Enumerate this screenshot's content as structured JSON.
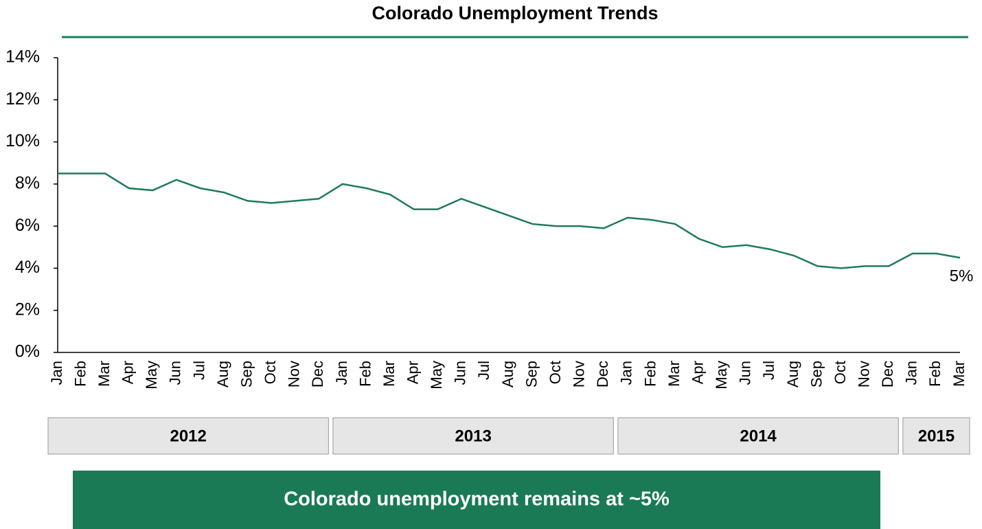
{
  "chart_data": {
    "type": "line",
    "title": "Colorado Unemployment Trends",
    "banner": "Colorado unemployment remains at ~5%",
    "categories": [
      "Jan",
      "Feb",
      "Mar",
      "Apr",
      "May",
      "Jun",
      "Jul",
      "Aug",
      "Sep",
      "Oct",
      "Nov",
      "Dec",
      "Jan",
      "Feb",
      "Mar",
      "Apr",
      "May",
      "Jun",
      "Jul",
      "Aug",
      "Sep",
      "Oct",
      "Nov",
      "Dec",
      "Jan",
      "Feb",
      "Mar",
      "Apr",
      "May",
      "Jun",
      "Jul",
      "Aug",
      "Sep",
      "Oct",
      "Nov",
      "Dec",
      "Jan",
      "Feb",
      "Mar"
    ],
    "year_labels": [
      "2012",
      "2013",
      "2014",
      "2015"
    ],
    "values": [
      8.5,
      8.5,
      8.5,
      7.8,
      7.7,
      8.2,
      7.8,
      7.6,
      7.2,
      7.1,
      7.2,
      7.3,
      8.0,
      7.8,
      7.5,
      6.8,
      6.8,
      7.3,
      6.9,
      6.5,
      6.1,
      6.0,
      6.0,
      5.9,
      6.4,
      6.3,
      6.1,
      5.4,
      5.0,
      5.1,
      4.9,
      4.6,
      4.1,
      4.0,
      4.1,
      4.1,
      4.7,
      4.7,
      4.5
    ],
    "value_labels": [
      null,
      null,
      null,
      null,
      null,
      null,
      null,
      null,
      null,
      null,
      null,
      null,
      null,
      null,
      null,
      null,
      null,
      null,
      null,
      null,
      null,
      null,
      null,
      null,
      null,
      null,
      null,
      null,
      null,
      null,
      null,
      null,
      null,
      null,
      null,
      null,
      null,
      null,
      "5%"
    ],
    "color": "#1e7a5a",
    "ylim": [
      0,
      14
    ],
    "yticks": [
      {
        "value": 0,
        "label": "0%"
      },
      {
        "value": 2,
        "label": "2%"
      },
      {
        "value": 4,
        "label": "4%"
      },
      {
        "value": 6,
        "label": "6%"
      },
      {
        "value": 8,
        "label": "8%"
      },
      {
        "value": 10,
        "label": "10%"
      },
      {
        "value": 12,
        "label": "12%"
      },
      {
        "value": 14,
        "label": "14%"
      }
    ],
    "grid": false
  }
}
